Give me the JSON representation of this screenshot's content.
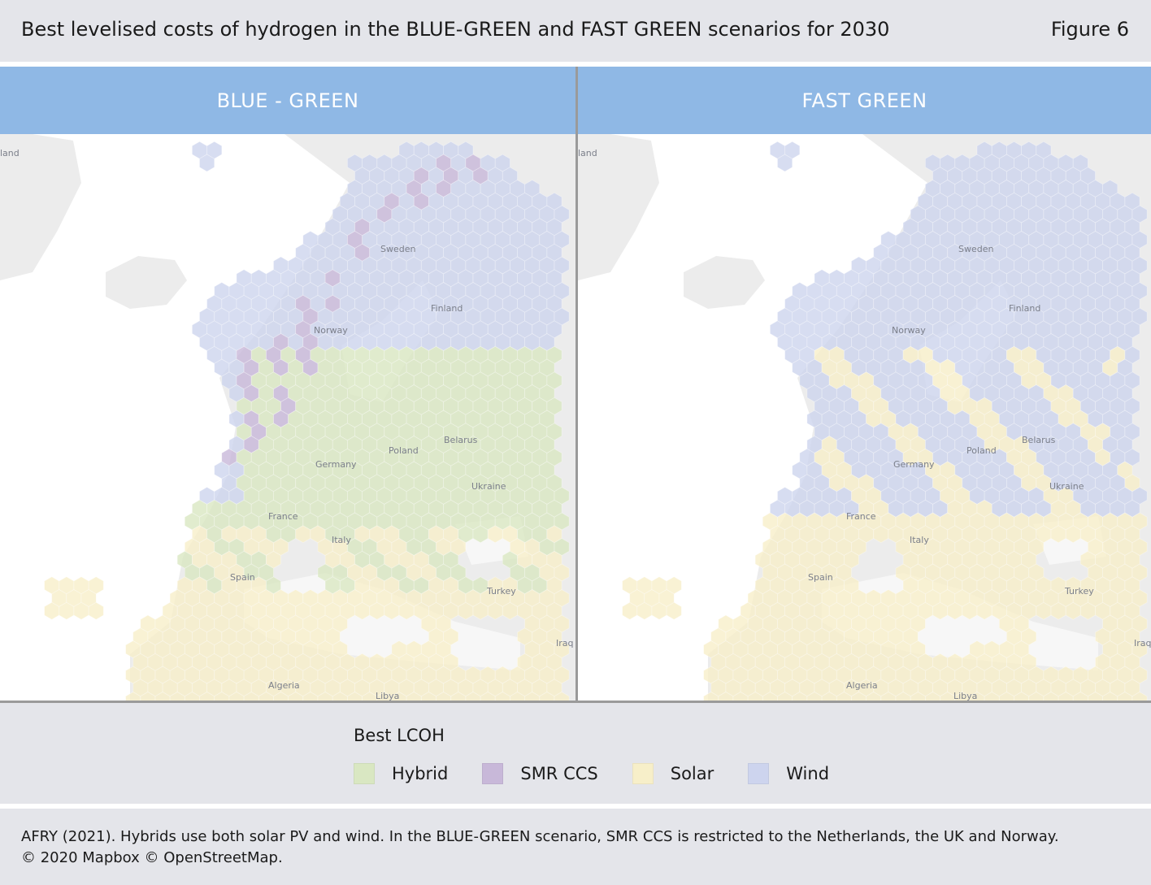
{
  "header": {
    "title": "Best levelised costs of hydrogen in the BLUE-GREEN and FAST GREEN scenarios for 2030",
    "figure": "Figure 6"
  },
  "panels": [
    {
      "heading": "BLUE - GREEN",
      "labels": [
        "land",
        "Sweden",
        "Finland",
        "Norway",
        "Belarus",
        "Poland",
        "Germany",
        "Ukraine",
        "France",
        "Italy",
        "Spain",
        "Turkey",
        "Iraq",
        "Algeria",
        "Libya"
      ]
    },
    {
      "heading": "FAST GREEN",
      "labels": [
        "land",
        "Sweden",
        "Finland",
        "Norway",
        "Belarus",
        "Poland",
        "Germany",
        "Ukraine",
        "France",
        "Italy",
        "Spain",
        "Turkey",
        "Iraq",
        "Algeria",
        "Libya"
      ]
    }
  ],
  "legend": {
    "title": "Best LCOH",
    "items": [
      {
        "label": "Hybrid",
        "color": "#d9e7c2"
      },
      {
        "label": "SMR CCS",
        "color": "#c8b8d9"
      },
      {
        "label": "Solar",
        "color": "#f7efc9"
      },
      {
        "label": "Wind",
        "color": "#cdd4ee"
      }
    ]
  },
  "footer": {
    "source": "AFRY (2021). Hybrids use both solar PV and wind. In the BLUE-GREEN scenario, SMR CCS is restricted to the Netherlands, the UK and Norway.",
    "copyright": "© 2020 Mapbox © OpenStreetMap."
  },
  "colors": {
    "land": "#ececec",
    "water": "#ffffff",
    "header": "#8fb8e5",
    "band": "#e4e5ea"
  }
}
